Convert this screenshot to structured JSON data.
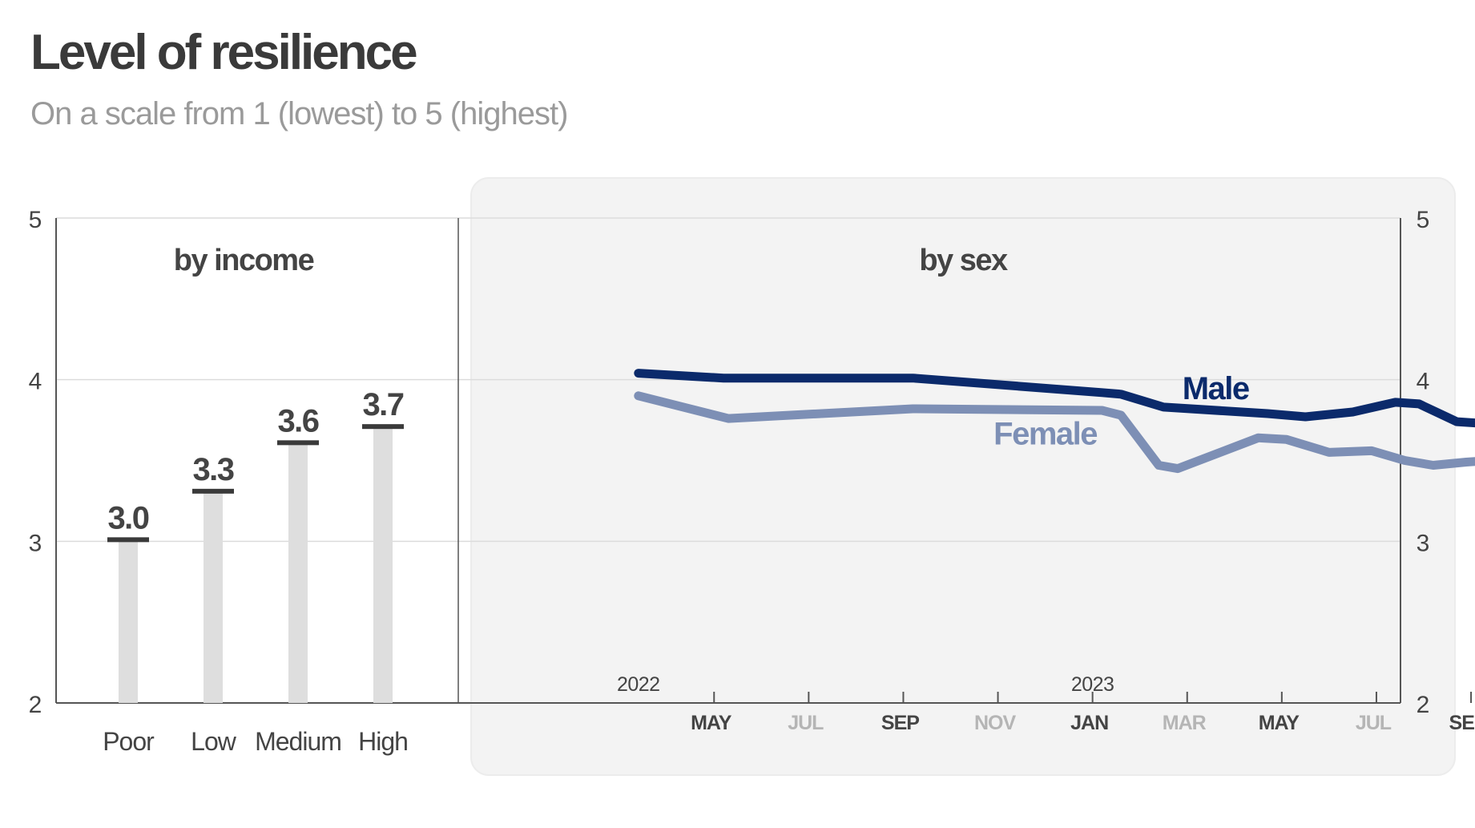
{
  "title": "Level of resilience",
  "subtitle": "On a scale from 1 (lowest) to 5 (highest)",
  "colors": {
    "male": "#0b2a6b",
    "female": "#7d8fb5",
    "bar": "#dedede",
    "bar_cap": "#3a3a3a",
    "panel_bg": "#f3f3f3",
    "grid": "#dcdcdc",
    "axis": "#555555",
    "tick_text": "#444444",
    "month_faded": "#b5b5b5"
  },
  "y_ticks": [
    "5",
    "4",
    "3",
    "2"
  ],
  "chart_data": [
    {
      "type": "bar",
      "title": "by income",
      "categories": [
        "Poor",
        "Low",
        "Medium",
        "High"
      ],
      "values": [
        3.0,
        3.3,
        3.6,
        3.7
      ],
      "value_labels": [
        "3.0",
        "3.3",
        "3.6",
        "3.7"
      ],
      "ylim": [
        2,
        5
      ],
      "y_ticks": [
        2,
        3,
        4,
        5
      ],
      "grid": true
    },
    {
      "type": "line",
      "title": "by sex",
      "ylim": [
        2,
        5
      ],
      "y_ticks": [
        2,
        3,
        4,
        5
      ],
      "x_ticks": [
        {
          "label": "MAY",
          "month": 5,
          "faded": false
        },
        {
          "label": "JUL",
          "month": 7,
          "faded": true
        },
        {
          "label": "SEP",
          "month": 9,
          "faded": false
        },
        {
          "label": "NOV",
          "month": 11,
          "faded": true
        },
        {
          "label": "JAN",
          "month": 13,
          "faded": false
        },
        {
          "label": "MAR",
          "month": 15,
          "faded": true
        },
        {
          "label": "MAY",
          "month": 17,
          "faded": false
        },
        {
          "label": "JUL",
          "month": 19,
          "faded": true
        },
        {
          "label": "SEP",
          "month": 21,
          "faded": false
        }
      ],
      "year_labels": [
        {
          "label": "2022",
          "month": 3.4
        },
        {
          "label": "2023",
          "month": 13
        }
      ],
      "series": [
        {
          "name": "Male",
          "key": "male",
          "x": [
            3.4,
            5.2,
            9.2,
            13.2,
            13.6,
            14.5,
            16.7,
            17.5,
            18.5,
            19.4,
            19.9,
            20.7,
            21.2,
            22.9
          ],
          "y": [
            4.04,
            4.01,
            4.01,
            3.92,
            3.91,
            3.83,
            3.79,
            3.77,
            3.8,
            3.86,
            3.85,
            3.74,
            3.73,
            3.76
          ]
        },
        {
          "name": "Female",
          "key": "female",
          "x": [
            3.4,
            5.3,
            9.2,
            13.2,
            13.6,
            14.4,
            14.8,
            16.5,
            17.1,
            18.0,
            18.9,
            19.6,
            20.2,
            20.9,
            21.9,
            22.9
          ],
          "y": [
            3.9,
            3.76,
            3.82,
            3.81,
            3.78,
            3.47,
            3.45,
            3.64,
            3.63,
            3.55,
            3.56,
            3.5,
            3.47,
            3.49,
            3.51,
            3.53
          ]
        }
      ],
      "grid": true
    }
  ]
}
